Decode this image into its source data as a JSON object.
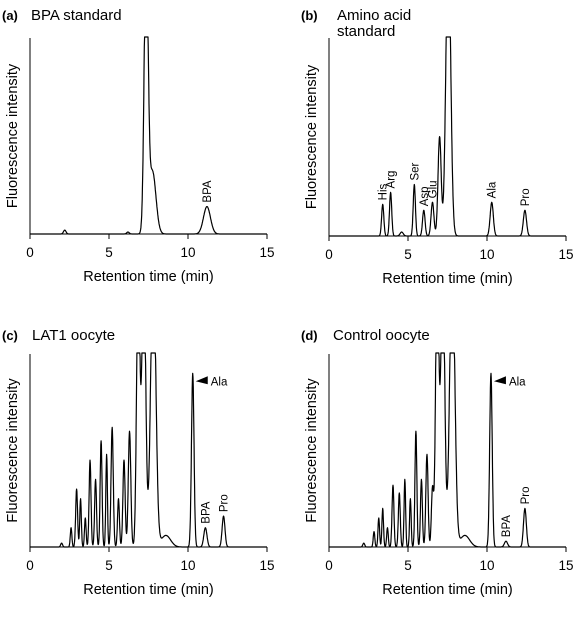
{
  "chart_data": [
    {
      "type": "line",
      "panel": "(a)",
      "title": "BPA standard",
      "xlabel": "Retention time (min)",
      "ylabel": "Fluorescence intensity",
      "xlim": [
        0,
        15
      ],
      "xticks": [
        "0",
        "5",
        "10",
        "15"
      ],
      "grid": false,
      "peaks": [
        {
          "rt": 2.2,
          "height": 0.02,
          "width": 0.08
        },
        {
          "rt": 6.2,
          "height": 0.01,
          "width": 0.08
        },
        {
          "rt": 7.35,
          "height": 1.5,
          "width": 0.12,
          "clipped": true
        },
        {
          "rt": 7.75,
          "height": 0.32,
          "width": 0.22
        },
        {
          "rt": 11.2,
          "height": 0.14,
          "width": 0.22,
          "label": "BPA"
        }
      ]
    },
    {
      "type": "line",
      "panel": "(b)",
      "title_lines": [
        "Amino acid",
        "standard"
      ],
      "xlabel": "Retention time (min)",
      "ylabel": "Fluorescence intensity",
      "xlim": [
        0,
        15
      ],
      "xticks": [
        "0",
        "5",
        "10",
        "15"
      ],
      "grid": false,
      "peaks": [
        {
          "rt": 3.4,
          "height": 0.16,
          "width": 0.07,
          "label": "His"
        },
        {
          "rt": 3.9,
          "height": 0.22,
          "width": 0.07,
          "label": "Arg"
        },
        {
          "rt": 4.6,
          "height": 0.02,
          "width": 0.1
        },
        {
          "rt": 5.4,
          "height": 0.26,
          "width": 0.07,
          "label": "Ser"
        },
        {
          "rt": 6.0,
          "height": 0.13,
          "width": 0.08,
          "label": "Asp"
        },
        {
          "rt": 6.55,
          "height": 0.17,
          "width": 0.09,
          "label": "Glu"
        },
        {
          "rt": 7.0,
          "height": 0.5,
          "width": 0.1
        },
        {
          "rt": 7.55,
          "height": 1.5,
          "width": 0.15,
          "clipped": true
        },
        {
          "rt": 10.3,
          "height": 0.17,
          "width": 0.1,
          "label": "Ala"
        },
        {
          "rt": 12.4,
          "height": 0.13,
          "width": 0.1,
          "label": "Pro"
        }
      ]
    },
    {
      "type": "line",
      "panel": "(c)",
      "title": "LAT1 oocyte",
      "xlabel": "Retention time (min)",
      "ylabel": "Fluorescence intensity",
      "xlim": [
        0,
        15
      ],
      "xticks": [
        "0",
        "5",
        "10",
        "15"
      ],
      "grid": false,
      "peaks": [
        {
          "rt": 2.0,
          "height": 0.02,
          "width": 0.06
        },
        {
          "rt": 2.6,
          "height": 0.1,
          "width": 0.05
        },
        {
          "rt": 2.95,
          "height": 0.3,
          "width": 0.06
        },
        {
          "rt": 3.2,
          "height": 0.25,
          "width": 0.05
        },
        {
          "rt": 3.5,
          "height": 0.15,
          "width": 0.05
        },
        {
          "rt": 3.8,
          "height": 0.45,
          "width": 0.06
        },
        {
          "rt": 4.15,
          "height": 0.35,
          "width": 0.06
        },
        {
          "rt": 4.5,
          "height": 0.55,
          "width": 0.06
        },
        {
          "rt": 4.85,
          "height": 0.48,
          "width": 0.05
        },
        {
          "rt": 5.2,
          "height": 0.62,
          "width": 0.07
        },
        {
          "rt": 5.6,
          "height": 0.25,
          "width": 0.06
        },
        {
          "rt": 5.95,
          "height": 0.45,
          "width": 0.07
        },
        {
          "rt": 6.3,
          "height": 0.6,
          "width": 0.08
        },
        {
          "rt": 6.85,
          "height": 1.5,
          "width": 0.1,
          "clipped": true
        },
        {
          "rt": 7.2,
          "height": 1.5,
          "width": 0.12,
          "clipped": true
        },
        {
          "rt": 7.8,
          "height": 1.5,
          "width": 0.16,
          "clipped": true
        },
        {
          "rt": 8.6,
          "height": 0.06,
          "width": 0.3
        },
        {
          "rt": 10.3,
          "height": 0.9,
          "width": 0.08,
          "label": "Ala"
        },
        {
          "rt": 11.1,
          "height": 0.1,
          "width": 0.1,
          "label": "BPA"
        },
        {
          "rt": 12.25,
          "height": 0.16,
          "width": 0.09,
          "label": "Pro"
        }
      ]
    },
    {
      "type": "line",
      "panel": "(d)",
      "title": "Control oocyte",
      "xlabel": "Retention time (min)",
      "ylabel": "Fluorescence intensity",
      "xlim": [
        0,
        15
      ],
      "xticks": [
        "0",
        "5",
        "10",
        "15"
      ],
      "grid": false,
      "peaks": [
        {
          "rt": 2.2,
          "height": 0.02,
          "width": 0.06
        },
        {
          "rt": 2.85,
          "height": 0.08,
          "width": 0.05
        },
        {
          "rt": 3.15,
          "height": 0.15,
          "width": 0.05
        },
        {
          "rt": 3.4,
          "height": 0.2,
          "width": 0.05
        },
        {
          "rt": 3.7,
          "height": 0.1,
          "width": 0.05
        },
        {
          "rt": 4.05,
          "height": 0.32,
          "width": 0.06
        },
        {
          "rt": 4.45,
          "height": 0.28,
          "width": 0.06
        },
        {
          "rt": 4.8,
          "height": 0.35,
          "width": 0.05
        },
        {
          "rt": 5.15,
          "height": 0.25,
          "width": 0.05
        },
        {
          "rt": 5.5,
          "height": 0.6,
          "width": 0.06
        },
        {
          "rt": 5.85,
          "height": 0.35,
          "width": 0.06
        },
        {
          "rt": 6.2,
          "height": 0.48,
          "width": 0.07
        },
        {
          "rt": 6.55,
          "height": 0.3,
          "width": 0.07
        },
        {
          "rt": 6.85,
          "height": 1.5,
          "width": 0.1,
          "clipped": true
        },
        {
          "rt": 7.2,
          "height": 1.5,
          "width": 0.12,
          "clipped": true
        },
        {
          "rt": 7.8,
          "height": 1.5,
          "width": 0.16,
          "clipped": true
        },
        {
          "rt": 8.6,
          "height": 0.06,
          "width": 0.3
        },
        {
          "rt": 10.25,
          "height": 0.9,
          "width": 0.08,
          "label": "Ala"
        },
        {
          "rt": 11.2,
          "height": 0.03,
          "width": 0.1,
          "label": "BPA"
        },
        {
          "rt": 12.4,
          "height": 0.2,
          "width": 0.09,
          "label": "Pro"
        }
      ]
    }
  ]
}
